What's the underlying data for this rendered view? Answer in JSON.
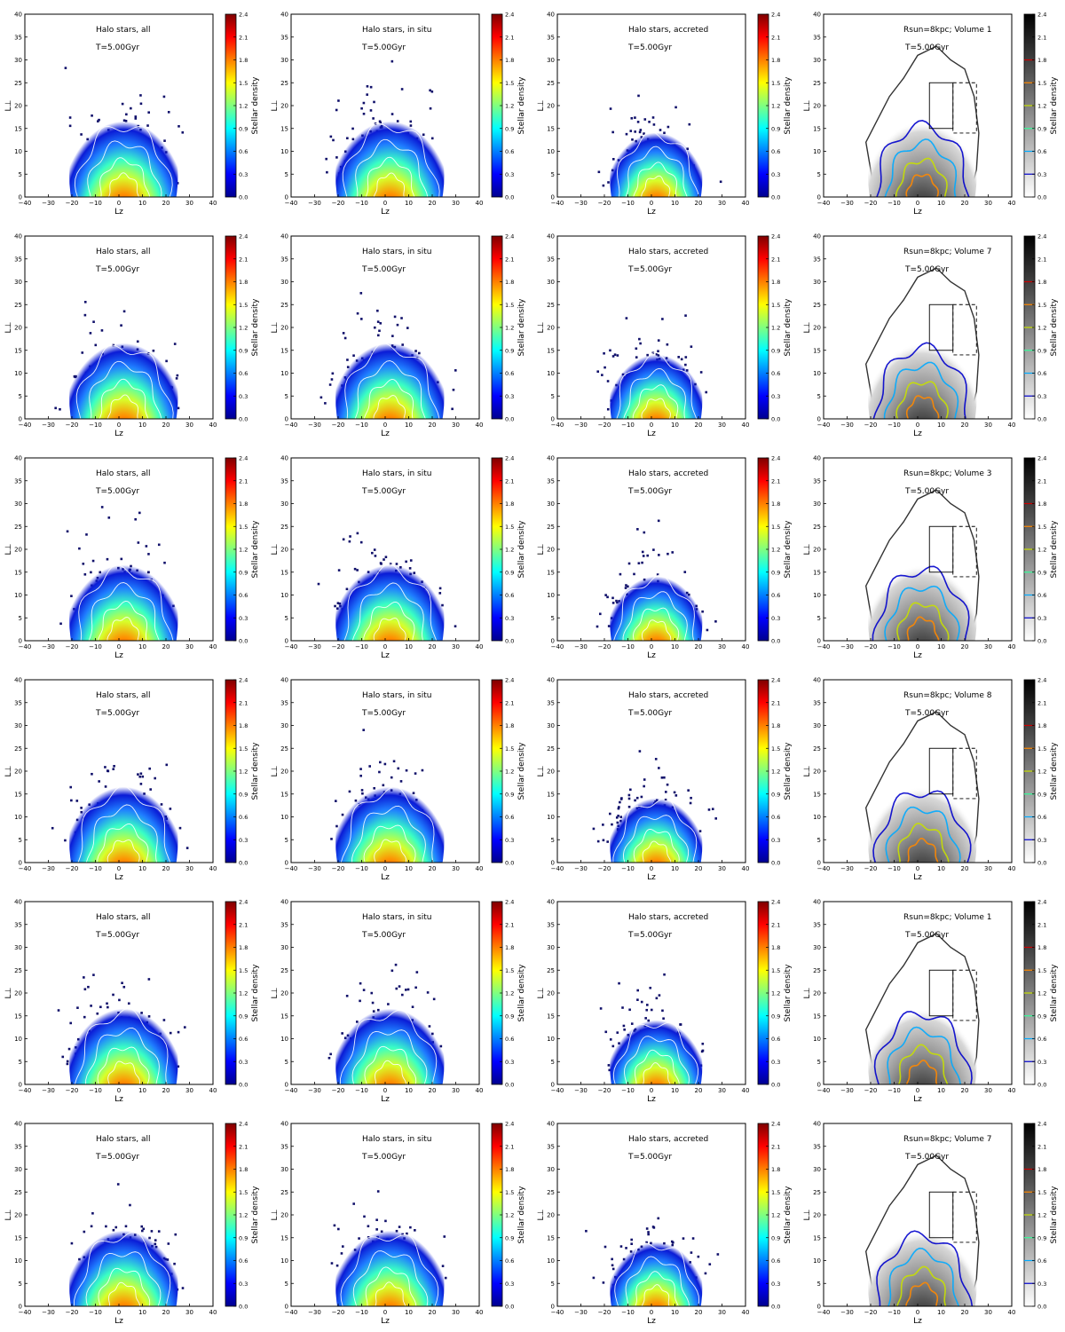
{
  "figure": {
    "columns": [
      {
        "title": "Halo stars, all",
        "colormap": "jet"
      },
      {
        "title": "Halo stars, in situ",
        "colormap": "jet"
      },
      {
        "title": "Halo stars, accreted",
        "colormap": "jet"
      },
      {
        "title": "Rsun=8kpc; Volume",
        "colormap": "gray"
      }
    ],
    "rows": [
      {
        "volume": "1",
        "time": "T=5.00Gyr"
      },
      {
        "volume": "7",
        "time": "T=5.00Gyr"
      },
      {
        "volume": "3",
        "time": "T=5.00Gyr"
      },
      {
        "volume": "8",
        "time": "T=5.00Gyr"
      },
      {
        "volume": "1",
        "time": "T=5.00Gyr"
      },
      {
        "volume": "7",
        "time": "T=5.00Gyr"
      }
    ]
  },
  "chart_data": {
    "type": "heatmap",
    "grid": "6 rows x 4 columns of 2D density panels",
    "xlabel": "L_z",
    "ylabel": "L_⊥",
    "xlim": [
      -40,
      40
    ],
    "ylim": [
      0,
      40
    ],
    "xticks": [
      "−40",
      "−30",
      "−20",
      "−10",
      "0",
      "10",
      "20",
      "30",
      "40"
    ],
    "yticks": [
      "0",
      "5",
      "10",
      "15",
      "20",
      "25",
      "30",
      "35",
      "40"
    ],
    "colorbar": {
      "label": "Stellar density",
      "range": [
        0.0,
        2.4
      ],
      "ticks": [
        "0.0",
        "0.3",
        "0.6",
        "0.9",
        "1.2",
        "1.5",
        "1.8",
        "2.1",
        "2.4"
      ]
    },
    "density_peak": {
      "Lz": 0,
      "Lperp": 3
    },
    "density_extent": {
      "Lz": [
        -25,
        30
      ],
      "Lperp": [
        0,
        30
      ]
    },
    "selection_box": {
      "Lz": [
        5,
        15
      ],
      "Lperp": [
        15,
        25
      ]
    },
    "selection_box_dashed": {
      "Lz": [
        15,
        25
      ],
      "Lperp": [
        14,
        25
      ]
    }
  }
}
